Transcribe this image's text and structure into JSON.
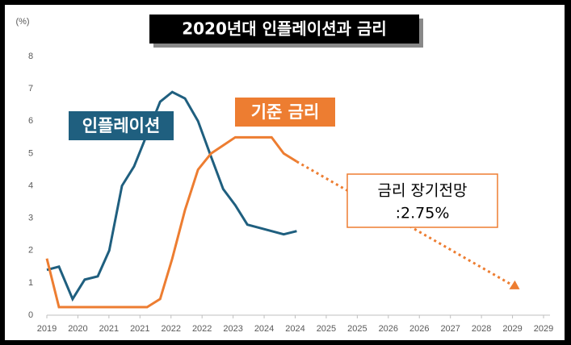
{
  "chart_data": {
    "type": "line",
    "title": "2020년대 인플레이션과 금리",
    "y_unit": "(%)",
    "xlim": [
      0,
      16
    ],
    "xticks": [
      {
        "value": 0,
        "label": "2019"
      },
      {
        "value": 1,
        "label": "2020"
      },
      {
        "value": 2,
        "label": "2021"
      },
      {
        "value": 3,
        "label": "2021"
      },
      {
        "value": 4,
        "label": "2022"
      },
      {
        "value": 5,
        "label": "2022"
      },
      {
        "value": 6,
        "label": "2023"
      },
      {
        "value": 7,
        "label": "2024"
      },
      {
        "value": 8,
        "label": "2024"
      },
      {
        "value": 9,
        "label": "2025"
      },
      {
        "value": 10,
        "label": "2025"
      },
      {
        "value": 11,
        "label": "2026"
      },
      {
        "value": 12,
        "label": "2026"
      },
      {
        "value": 13,
        "label": "2027"
      },
      {
        "value": 14,
        "label": "2028"
      },
      {
        "value": 15,
        "label": "2029"
      },
      {
        "value": 16,
        "label": "2029"
      }
    ],
    "ylim": [
      0,
      8
    ],
    "yticks": [
      0,
      1,
      2,
      3,
      4,
      5,
      6,
      7,
      8
    ],
    "series": [
      {
        "name": "인플레이션",
        "color": "#1f5f7f",
        "x": [
          0,
          0.39,
          0.83,
          1.22,
          1.64,
          2.01,
          2.42,
          2.81,
          3.23,
          3.65,
          4.04,
          4.45,
          4.87,
          5.29,
          5.68,
          6.07,
          6.46,
          6.85,
          7.24,
          7.63,
          8.05
        ],
        "values": [
          1.4,
          1.5,
          0.5,
          1.1,
          1.2,
          2.0,
          4.0,
          4.6,
          5.6,
          6.6,
          6.9,
          6.7,
          6.0,
          4.9,
          3.9,
          3.4,
          2.8,
          2.7,
          2.6,
          2.5,
          2.6
        ]
      },
      {
        "name": "기준 금리",
        "color": "#ed7d31",
        "x": [
          0,
          0.39,
          0.83,
          1.22,
          1.64,
          2.01,
          2.42,
          2.81,
          3.23,
          3.65,
          4.04,
          4.45,
          4.87,
          5.29,
          5.68,
          6.07,
          6.46,
          6.85,
          7.24,
          7.63,
          8.05
        ],
        "values": [
          1.75,
          0.25,
          0.25,
          0.25,
          0.25,
          0.25,
          0.25,
          0.25,
          0.25,
          0.5,
          1.75,
          3.25,
          4.5,
          5.0,
          5.25,
          5.5,
          5.5,
          5.5,
          5.5,
          5.0,
          4.75
        ]
      }
    ],
    "projection": {
      "color": "#ed7d31",
      "x": [
        8.05,
        15.05
      ],
      "values": [
        4.75,
        0.9
      ]
    },
    "annotation": {
      "line1": "금리 장기전망",
      "line2": ":2.75%"
    }
  }
}
